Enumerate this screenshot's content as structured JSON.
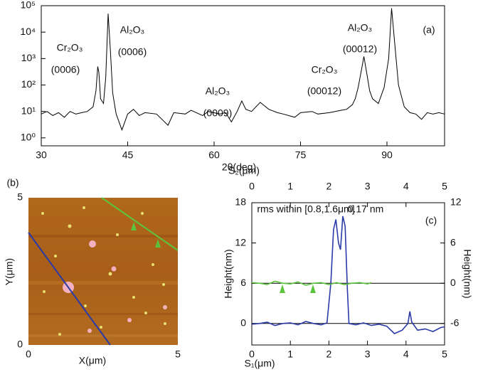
{
  "chart_data": [
    {
      "type": "line",
      "panel_label": "(a)",
      "xlabel": "2θ(deg)",
      "ylog": true,
      "xlim": [
        30,
        100
      ],
      "xticks": [
        30,
        45,
        60,
        75,
        90
      ],
      "ylim": [
        0.5,
        100000
      ],
      "yticks": [
        {
          "value": 1,
          "label": "10⁰"
        },
        {
          "value": 10,
          "label": "10¹"
        },
        {
          "value": 100,
          "label": "10²"
        },
        {
          "value": 1000,
          "label": "10³"
        },
        {
          "value": 10000,
          "label": "10⁴"
        },
        {
          "value": 100000,
          "label": "10⁵"
        }
      ],
      "annotations": [
        {
          "text": "Cr₂O₃",
          "color": "#d42020"
        },
        {
          "text": "(0006)",
          "color": "#d42020"
        },
        {
          "text": "Al₂O₃",
          "color": "#111111"
        },
        {
          "text": "(0006)",
          "color": "#111111"
        },
        {
          "text": "Al₂O₃",
          "color": "#111111"
        },
        {
          "text": "(0009)",
          "color": "#111111"
        },
        {
          "text": "Cr₂O₃",
          "color": "#d42020"
        },
        {
          "text": "(00012)",
          "color": "#d42020"
        },
        {
          "text": "Al₂O₃",
          "color": "#111111"
        },
        {
          "text": "(00012)",
          "color": "#111111"
        }
      ],
      "series": [
        {
          "color": "#000000",
          "x": [
            30,
            31,
            32,
            33,
            34,
            35,
            36,
            37,
            38,
            39,
            39.5,
            39.8,
            40,
            40.3,
            40.8,
            41.2,
            41.6,
            42,
            42.4,
            43,
            44,
            45,
            46,
            47,
            48,
            50,
            52,
            53,
            55,
            56,
            58,
            59,
            61,
            62,
            63,
            64,
            64.8,
            65.5,
            66.5,
            68,
            69.5,
            71,
            72,
            74,
            75,
            77,
            78,
            80,
            81,
            82,
            83,
            84,
            84.5,
            85,
            85.5,
            86,
            86.6,
            87,
            87.5,
            88.5,
            89.5,
            90.3,
            90.8,
            91.3,
            92,
            93,
            94,
            95,
            96,
            97,
            98,
            99,
            100
          ],
          "values": [
            8,
            10,
            7,
            9,
            6,
            10,
            8,
            9,
            10,
            15,
            60,
            500,
            300,
            30,
            20,
            200,
            50000,
            2000,
            50,
            8,
            2,
            8,
            12,
            7,
            9,
            8,
            3,
            9,
            8,
            11,
            7,
            10,
            8,
            9,
            4,
            10,
            25,
            12,
            10,
            22,
            12,
            9,
            8,
            6,
            9,
            10,
            8,
            9,
            10,
            11,
            12,
            18,
            30,
            80,
            300,
            1200,
            200,
            60,
            30,
            20,
            80,
            1000,
            80000,
            5000,
            100,
            15,
            9,
            8,
            5,
            9,
            8,
            9,
            8
          ]
        }
      ]
    },
    {
      "type": "image",
      "panel_label": "(b)",
      "xlabel": "X(μm)",
      "ylabel": "Y(μm)",
      "xlim": [
        0,
        5
      ],
      "xticks": [
        0,
        5
      ],
      "ylim": [
        0,
        5
      ],
      "yticks": [
        0,
        5
      ]
    },
    {
      "type": "line",
      "panel_label": "(c)",
      "xlabel": "S₁(μm)",
      "x2label": "S₂(μm)",
      "ylabel": "Height(nm)",
      "y2label": "Height(nm)",
      "xlim": [
        0,
        5
      ],
      "xticks": [
        0,
        1,
        2,
        3,
        4,
        5
      ],
      "x2lim": [
        0,
        5
      ],
      "x2ticks": [
        0,
        1,
        2,
        3,
        4,
        5
      ],
      "ylim": [
        -3.2,
        18
      ],
      "yticks": [
        0,
        6,
        12,
        18
      ],
      "y2lim": [
        -9.2,
        12
      ],
      "y2ticks": [
        -6,
        0,
        6,
        12
      ],
      "annotations": [
        {
          "text": "rms within [0.8,1.6μm]",
          "color": "#5cc43c"
        },
        {
          "text": "0.17 nm",
          "color": "#5cc43c"
        }
      ],
      "series": [
        {
          "color": "#2a3aa8",
          "x": [
            0,
            0.2,
            0.4,
            0.6,
            0.8,
            1.0,
            1.2,
            1.4,
            1.6,
            1.8,
            1.95,
            2.05,
            2.12,
            2.18,
            2.25,
            2.3,
            2.36,
            2.42,
            2.48,
            2.52,
            2.7,
            2.9,
            3.1,
            3.3,
            3.5,
            3.7,
            3.9,
            4.05,
            4.1,
            4.15,
            4.3,
            4.5,
            4.7,
            4.9,
            5
          ],
          "values": [
            -0.1,
            0,
            0.2,
            -0.3,
            0,
            0.1,
            -0.2,
            0.3,
            0,
            -0.2,
            0.1,
            6,
            14,
            15.5,
            12,
            11,
            16,
            14.5,
            5,
            0,
            -0.2,
            0.1,
            -0.3,
            -0.1,
            -0.4,
            -1.5,
            -1,
            0,
            1.8,
            0.2,
            -1,
            -0.8,
            -1.2,
            -0.6,
            -0.5
          ]
        },
        {
          "color": "#5cc43c",
          "axis": "y2",
          "xaxis": "x2",
          "x": [
            0,
            0.2,
            0.4,
            0.6,
            0.8,
            1.0,
            1.2,
            1.4,
            1.6,
            1.8,
            2.0,
            2.2,
            2.4,
            2.6,
            2.8,
            3.0,
            3.1
          ],
          "values": [
            0.1,
            0,
            -0.2,
            0.3,
            0,
            -0.1,
            0.2,
            -0.3,
            0,
            0.1,
            -0.2,
            0.1,
            -0.2,
            0,
            0.1,
            -0.1,
            0.1
          ]
        }
      ]
    }
  ]
}
